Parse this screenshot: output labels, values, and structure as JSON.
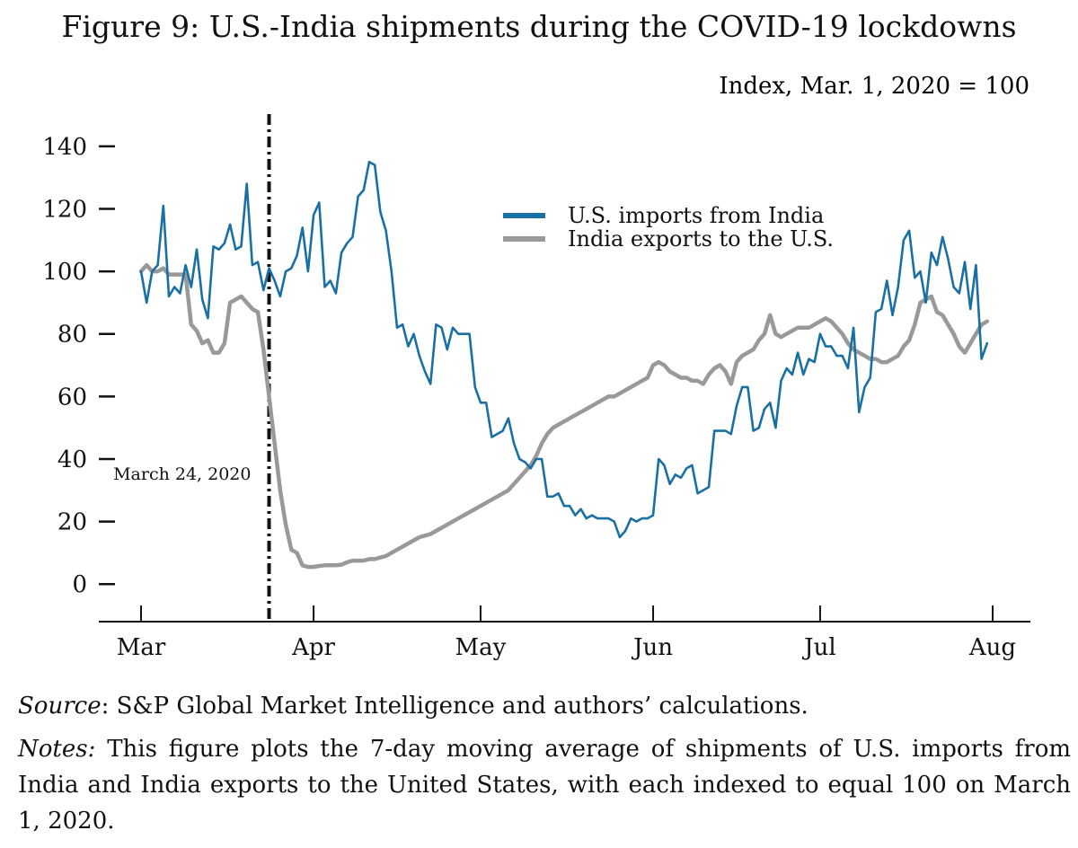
{
  "chart_data": {
    "type": "line",
    "title": "Figure 9: U.S.-India shipments during the COVID-19 lockdowns",
    "ylabel": "Index, Mar. 1, 2020 = 100",
    "xlabel": "",
    "ylim": [
      -12,
      148
    ],
    "yticks": [
      0,
      20,
      40,
      60,
      80,
      100,
      120,
      140
    ],
    "xlim": [
      1,
      154
    ],
    "xticks": [
      {
        "label": "Mar",
        "day": 1
      },
      {
        "label": "Apr",
        "day": 32
      },
      {
        "label": "May",
        "day": 62
      },
      {
        "label": "Jun",
        "day": 93
      },
      {
        "label": "Jul",
        "day": 123
      },
      {
        "label": "Aug",
        "day": 154
      }
    ],
    "x_unit": "day index since Mar 1, 2020 (Mar 1 = 1)",
    "annotation": {
      "label": "March 24, 2020",
      "day": 24
    },
    "legend": "upper-middle",
    "grid": false,
    "series": [
      {
        "name": "U.S. imports from India",
        "color": "#1a6fa3",
        "points": [
          [
            1,
            100
          ],
          [
            2,
            90
          ],
          [
            3,
            100
          ],
          [
            4,
            102
          ],
          [
            5,
            121
          ],
          [
            6,
            92
          ],
          [
            7,
            95
          ],
          [
            8,
            93
          ],
          [
            9,
            102
          ],
          [
            10,
            95
          ],
          [
            11,
            107
          ],
          [
            12,
            91
          ],
          [
            13,
            85
          ],
          [
            14,
            108
          ],
          [
            15,
            107
          ],
          [
            16,
            109
          ],
          [
            17,
            115
          ],
          [
            18,
            107
          ],
          [
            19,
            108
          ],
          [
            20,
            128
          ],
          [
            21,
            102
          ],
          [
            22,
            103
          ],
          [
            23,
            94
          ],
          [
            24,
            101
          ],
          [
            25,
            97
          ],
          [
            26,
            92
          ],
          [
            27,
            100
          ],
          [
            28,
            101
          ],
          [
            29,
            105
          ],
          [
            30,
            114
          ],
          [
            31,
            100
          ],
          [
            32,
            118
          ],
          [
            33,
            122
          ],
          [
            34,
            95
          ],
          [
            35,
            97
          ],
          [
            36,
            93
          ],
          [
            37,
            106
          ],
          [
            38,
            109
          ],
          [
            39,
            111
          ],
          [
            40,
            124
          ],
          [
            41,
            126
          ],
          [
            42,
            135
          ],
          [
            43,
            134
          ],
          [
            44,
            119
          ],
          [
            45,
            113
          ],
          [
            46,
            100
          ],
          [
            47,
            82
          ],
          [
            48,
            83
          ],
          [
            49,
            76
          ],
          [
            50,
            80
          ],
          [
            51,
            73
          ],
          [
            52,
            68
          ],
          [
            53,
            64
          ],
          [
            54,
            83
          ],
          [
            55,
            82
          ],
          [
            56,
            75
          ],
          [
            57,
            82
          ],
          [
            58,
            80
          ],
          [
            59,
            80
          ],
          [
            60,
            80
          ],
          [
            61,
            63
          ],
          [
            62,
            58
          ],
          [
            63,
            58
          ],
          [
            64,
            47
          ],
          [
            65,
            48
          ],
          [
            66,
            49
          ],
          [
            67,
            53
          ],
          [
            68,
            45
          ],
          [
            69,
            40
          ],
          [
            70,
            39
          ],
          [
            71,
            37
          ],
          [
            72,
            40
          ],
          [
            73,
            40
          ],
          [
            74,
            28
          ],
          [
            75,
            28
          ],
          [
            76,
            29
          ],
          [
            77,
            25
          ],
          [
            78,
            25
          ],
          [
            79,
            22
          ],
          [
            80,
            24
          ],
          [
            81,
            21
          ],
          [
            82,
            22
          ],
          [
            83,
            21
          ],
          [
            84,
            21
          ],
          [
            85,
            21
          ],
          [
            86,
            20
          ],
          [
            87,
            15
          ],
          [
            88,
            17
          ],
          [
            89,
            21
          ],
          [
            90,
            20
          ],
          [
            91,
            21
          ],
          [
            92,
            21
          ],
          [
            93,
            22
          ],
          [
            94,
            40
          ],
          [
            95,
            38
          ],
          [
            96,
            32
          ],
          [
            97,
            35
          ],
          [
            98,
            34
          ],
          [
            99,
            37
          ],
          [
            100,
            38
          ],
          [
            101,
            29
          ],
          [
            102,
            30
          ],
          [
            103,
            31
          ],
          [
            104,
            49
          ],
          [
            105,
            49
          ],
          [
            106,
            49
          ],
          [
            107,
            48
          ],
          [
            108,
            57
          ],
          [
            109,
            63
          ],
          [
            110,
            63
          ],
          [
            111,
            49
          ],
          [
            112,
            50
          ],
          [
            113,
            56
          ],
          [
            114,
            58
          ],
          [
            115,
            50
          ],
          [
            116,
            65
          ],
          [
            117,
            69
          ],
          [
            118,
            67
          ],
          [
            119,
            74
          ],
          [
            120,
            67
          ],
          [
            121,
            72
          ],
          [
            122,
            71
          ],
          [
            123,
            80
          ],
          [
            124,
            76
          ],
          [
            125,
            76
          ],
          [
            126,
            73
          ],
          [
            127,
            73
          ],
          [
            128,
            69
          ],
          [
            129,
            82
          ],
          [
            130,
            55
          ],
          [
            131,
            63
          ],
          [
            132,
            66
          ],
          [
            133,
            87
          ],
          [
            134,
            88
          ],
          [
            135,
            97
          ],
          [
            136,
            86
          ],
          [
            137,
            95
          ],
          [
            138,
            110
          ],
          [
            139,
            113
          ],
          [
            140,
            98
          ],
          [
            141,
            100
          ],
          [
            142,
            90
          ],
          [
            143,
            106
          ],
          [
            144,
            102
          ],
          [
            145,
            111
          ],
          [
            146,
            104
          ],
          [
            147,
            95
          ],
          [
            148,
            93
          ],
          [
            149,
            103
          ],
          [
            150,
            88
          ],
          [
            151,
            102
          ],
          [
            152,
            72
          ],
          [
            153,
            77
          ]
        ]
      },
      {
        "name": "India exports to the U.S.",
        "color": "#999999",
        "points": [
          [
            1,
            100
          ],
          [
            2,
            102
          ],
          [
            3,
            100
          ],
          [
            4,
            100
          ],
          [
            5,
            101
          ],
          [
            6,
            99
          ],
          [
            7,
            99
          ],
          [
            8,
            99
          ],
          [
            9,
            99
          ],
          [
            10,
            83
          ],
          [
            11,
            81
          ],
          [
            12,
            77
          ],
          [
            13,
            78
          ],
          [
            14,
            74
          ],
          [
            15,
            74
          ],
          [
            16,
            77
          ],
          [
            17,
            90
          ],
          [
            18,
            91
          ],
          [
            19,
            92
          ],
          [
            20,
            90
          ],
          [
            21,
            88
          ],
          [
            22,
            87
          ],
          [
            23,
            75
          ],
          [
            24,
            60
          ],
          [
            25,
            45
          ],
          [
            26,
            30
          ],
          [
            27,
            19
          ],
          [
            28,
            11
          ],
          [
            29,
            10
          ],
          [
            30,
            6
          ],
          [
            31,
            5.5
          ],
          [
            32,
            5.5
          ],
          [
            33,
            5.8
          ],
          [
            34,
            6
          ],
          [
            35,
            6
          ],
          [
            36,
            6
          ],
          [
            37,
            6.2
          ],
          [
            38,
            7
          ],
          [
            39,
            7.5
          ],
          [
            40,
            7.5
          ],
          [
            41,
            7.5
          ],
          [
            42,
            8
          ],
          [
            43,
            8
          ],
          [
            44,
            8.5
          ],
          [
            45,
            9
          ],
          [
            46,
            10
          ],
          [
            47,
            11
          ],
          [
            48,
            12
          ],
          [
            49,
            13
          ],
          [
            50,
            14
          ],
          [
            51,
            15
          ],
          [
            52,
            15.5
          ],
          [
            53,
            16
          ],
          [
            54,
            17
          ],
          [
            55,
            18
          ],
          [
            56,
            19
          ],
          [
            57,
            20
          ],
          [
            58,
            21
          ],
          [
            59,
            22
          ],
          [
            60,
            23
          ],
          [
            61,
            24
          ],
          [
            62,
            25
          ],
          [
            63,
            26
          ],
          [
            64,
            27
          ],
          [
            65,
            28
          ],
          [
            66,
            29
          ],
          [
            67,
            30
          ],
          [
            68,
            32
          ],
          [
            69,
            34
          ],
          [
            70,
            36
          ],
          [
            71,
            38
          ],
          [
            72,
            41
          ],
          [
            73,
            45
          ],
          [
            74,
            48
          ],
          [
            75,
            50
          ],
          [
            76,
            51
          ],
          [
            77,
            52
          ],
          [
            78,
            53
          ],
          [
            79,
            54
          ],
          [
            80,
            55
          ],
          [
            81,
            56
          ],
          [
            82,
            57
          ],
          [
            83,
            58
          ],
          [
            84,
            59
          ],
          [
            85,
            60
          ],
          [
            86,
            60
          ],
          [
            87,
            61
          ],
          [
            88,
            62
          ],
          [
            89,
            63
          ],
          [
            90,
            64
          ],
          [
            91,
            65
          ],
          [
            92,
            66
          ],
          [
            93,
            70
          ],
          [
            94,
            71
          ],
          [
            95,
            70
          ],
          [
            96,
            68
          ],
          [
            97,
            67
          ],
          [
            98,
            66
          ],
          [
            99,
            66
          ],
          [
            100,
            65
          ],
          [
            101,
            65
          ],
          [
            102,
            64
          ],
          [
            103,
            67
          ],
          [
            104,
            69
          ],
          [
            105,
            70
          ],
          [
            106,
            68
          ],
          [
            107,
            64
          ],
          [
            108,
            71
          ],
          [
            109,
            73
          ],
          [
            110,
            74
          ],
          [
            111,
            75
          ],
          [
            112,
            78
          ],
          [
            113,
            80
          ],
          [
            114,
            86
          ],
          [
            115,
            80
          ],
          [
            116,
            79
          ],
          [
            117,
            80
          ],
          [
            118,
            81
          ],
          [
            119,
            82
          ],
          [
            120,
            82
          ],
          [
            121,
            82
          ],
          [
            122,
            83
          ],
          [
            123,
            84
          ],
          [
            124,
            85
          ],
          [
            125,
            84
          ],
          [
            126,
            82
          ],
          [
            127,
            80
          ],
          [
            128,
            77
          ],
          [
            129,
            75
          ],
          [
            130,
            74
          ],
          [
            131,
            73
          ],
          [
            132,
            72
          ],
          [
            133,
            72
          ],
          [
            134,
            71
          ],
          [
            135,
            71
          ],
          [
            136,
            72
          ],
          [
            137,
            73
          ],
          [
            138,
            76
          ],
          [
            139,
            78
          ],
          [
            140,
            83
          ],
          [
            141,
            90
          ],
          [
            142,
            91
          ],
          [
            143,
            92
          ],
          [
            144,
            87
          ],
          [
            145,
            86
          ],
          [
            146,
            83
          ],
          [
            147,
            80
          ],
          [
            148,
            76
          ],
          [
            149,
            74
          ],
          [
            150,
            77
          ],
          [
            151,
            80
          ],
          [
            152,
            83
          ],
          [
            153,
            84
          ]
        ]
      }
    ]
  },
  "source": {
    "label": "Source",
    "text": ": S&P Global Market Intelligence and authors’ calculations."
  },
  "notes": {
    "label": "Notes:",
    "text": " This figure plots the 7-day moving average of shipments of U.S. imports from India and India exports to the United States, with each indexed to equal 100 on March 1, 2020."
  }
}
